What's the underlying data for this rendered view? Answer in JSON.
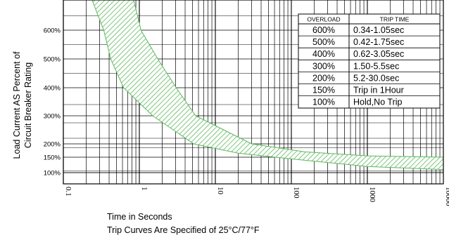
{
  "chart_data": {
    "type": "area",
    "xscale": "log",
    "xlim": [
      0.1,
      10000
    ],
    "xticks": [
      "0.1",
      "1",
      "10",
      "100",
      "1000",
      "10000"
    ],
    "yticks": [
      {
        "label": "600%",
        "value": 600
      },
      {
        "label": "500%",
        "value": 500
      },
      {
        "label": "400%",
        "value": 400
      },
      {
        "label": "300%",
        "value": 300
      },
      {
        "label": "200%",
        "value": 200
      },
      {
        "label": "150%",
        "value": 150
      },
      {
        "label": "100%",
        "value": 100
      }
    ],
    "ylabel_lines": [
      "Load Current AS Percent of",
      "Circuit Breaker Rating"
    ],
    "xlabel": "Time in Seconds",
    "footnote": "Trip Curves Are Specified of 25°C/77°F",
    "grid": true,
    "band_color": "#5cb85c",
    "band": {
      "min_trip": [
        {
          "t": 0.22,
          "load": 730
        },
        {
          "t": 0.34,
          "load": 600
        },
        {
          "t": 0.42,
          "load": 500
        },
        {
          "t": 0.62,
          "load": 400
        },
        {
          "t": 1.5,
          "load": 300
        },
        {
          "t": 5.2,
          "load": 200
        },
        {
          "t": 20,
          "load": 165
        },
        {
          "t": 150,
          "load": 140
        },
        {
          "t": 1000,
          "load": 120
        },
        {
          "t": 10000,
          "load": 110
        }
      ],
      "max_trip": [
        {
          "t": 0.8,
          "load": 730
        },
        {
          "t": 1.05,
          "load": 600
        },
        {
          "t": 1.75,
          "load": 500
        },
        {
          "t": 3.05,
          "load": 400
        },
        {
          "t": 5.5,
          "load": 300
        },
        {
          "t": 30,
          "load": 200
        },
        {
          "t": 150,
          "load": 170
        },
        {
          "t": 1000,
          "load": 155
        },
        {
          "t": 10000,
          "load": 150
        }
      ]
    }
  },
  "trip_table": {
    "headers": [
      "OVERLOAD",
      "TRIP TIME"
    ],
    "rows": [
      [
        "600%",
        "0.34-1.05sec"
      ],
      [
        "500%",
        "0.42-1.75sec"
      ],
      [
        "400%",
        "0.62-3.05sec"
      ],
      [
        "300%",
        "1.50-5.5sec"
      ],
      [
        "200%",
        "5.2-30.0sec"
      ],
      [
        "150%",
        "Trip in 1Hour"
      ],
      [
        "100%",
        "Hold,No Trip"
      ]
    ]
  }
}
